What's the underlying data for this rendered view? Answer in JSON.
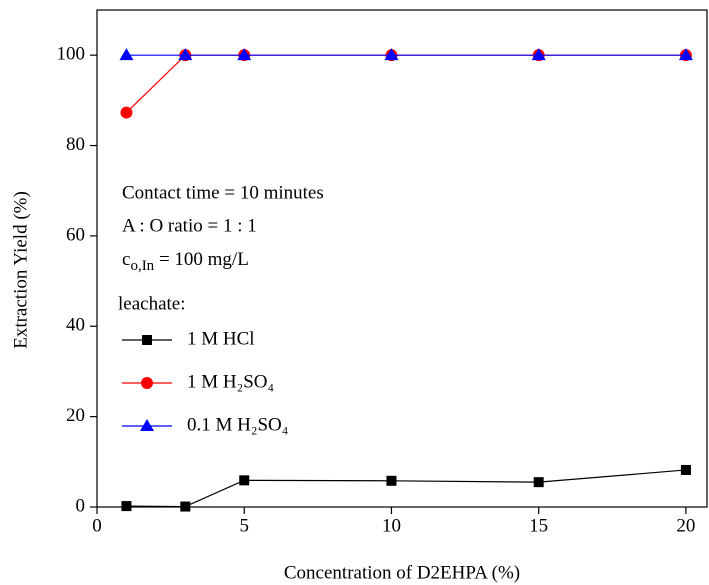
{
  "chart_data": {
    "type": "line",
    "xlabel": "Concentration of D2EHPA (%)",
    "ylabel": "Extraction Yield (%)",
    "x": [
      1,
      3,
      5,
      10,
      15,
      20
    ],
    "series": [
      {
        "name": "1 M HCl",
        "color": "#000000",
        "marker": "square",
        "values": [
          0.2,
          0.1,
          5.9,
          5.8,
          5.5,
          8.2
        ]
      },
      {
        "name": "1 M H₂SO₄",
        "color": "#ff0000",
        "marker": "circle",
        "values": [
          87.3,
          100,
          100,
          100,
          100,
          100
        ]
      },
      {
        "name": "0.1 M H₂SO₄",
        "color": "#0000ff",
        "marker": "triangle",
        "values": [
          100,
          100,
          100,
          100,
          100,
          100
        ]
      }
    ],
    "legend_title": "leachate:",
    "annotations": [
      "Contact time = 10 minutes",
      "A : O ratio = 1 : 1"
    ],
    "concentration_note": {
      "symbol": "c",
      "subscript": "o,In",
      "rest": " = 100 mg/L"
    },
    "xlim": [
      0,
      20.75
    ],
    "xticks": [
      0,
      5,
      10,
      15,
      20
    ],
    "ylim": [
      0,
      110
    ],
    "yticks": [
      0,
      20,
      40,
      60,
      80,
      100
    ]
  }
}
